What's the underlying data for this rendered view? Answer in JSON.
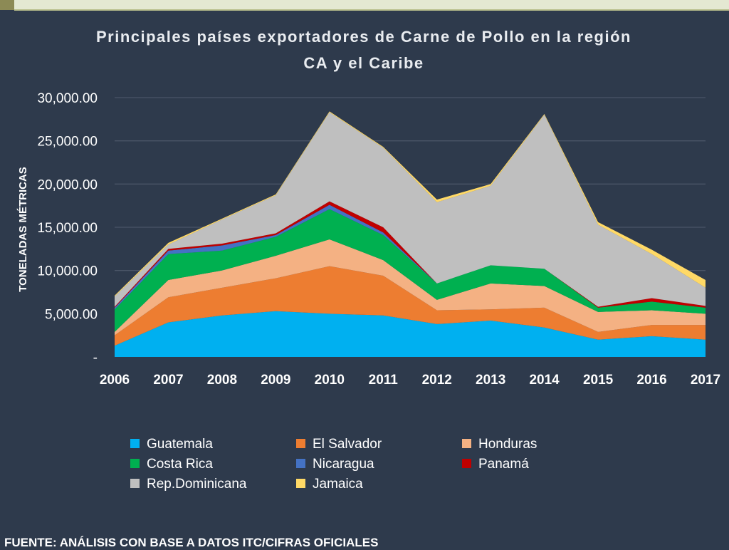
{
  "colors": {
    "background": "#2e3a4c",
    "grid": "#4a5567",
    "text": "#ffffff",
    "title": "#e9ecf0"
  },
  "source": "FUENTE: ANÁLISIS CON BASE A DATOS ITC/CIFRAS OFICIALES",
  "chart_data": {
    "type": "area",
    "stacked": true,
    "title": "Principales  países exportadores de Carne de Pollo en la región CA y el Caribe",
    "title_lines": [
      "Principales  países exportadores de Carne de Pollo en la región",
      "CA y el Caribe"
    ],
    "xlabel": "",
    "ylabel": "TONELADAS MÉTRICAS",
    "ylim": [
      0,
      30000
    ],
    "yticks": [
      0,
      5000,
      10000,
      15000,
      20000,
      25000,
      30000
    ],
    "ytick_labels": [
      "-",
      "5,000.00",
      "10,000.00",
      "15,000.00",
      "20,000.00",
      "25,000.00",
      "30,000.00"
    ],
    "grid": true,
    "legend_position": "bottom",
    "x": [
      "2006",
      "2007",
      "2008",
      "2009",
      "2010",
      "2011",
      "2012",
      "2013",
      "2014",
      "2015",
      "2016",
      "2017"
    ],
    "series": [
      {
        "name": "Guatemala",
        "color": "#00b0f0",
        "values": [
          1300,
          4000,
          4800,
          5300,
          5000,
          4800,
          3800,
          4200,
          3400,
          2000,
          2400,
          2000
        ]
      },
      {
        "name": "El Salvador",
        "color": "#ed7d31",
        "values": [
          1200,
          2900,
          3200,
          3800,
          5500,
          4600,
          1600,
          1300,
          2300,
          900,
          1300,
          1700
        ]
      },
      {
        "name": "Honduras",
        "color": "#f4b183",
        "values": [
          400,
          2000,
          2000,
          2600,
          3100,
          1800,
          1200,
          3000,
          2500,
          2300,
          1700,
          1300
        ]
      },
      {
        "name": "Costa Rica",
        "color": "#00b050",
        "values": [
          2600,
          3000,
          2300,
          2200,
          3500,
          2900,
          1900,
          2100,
          2000,
          500,
          1000,
          700
        ]
      },
      {
        "name": "Nicaragua",
        "color": "#4472c4",
        "values": [
          200,
          400,
          600,
          200,
          500,
          300,
          0,
          0,
          0,
          0,
          0,
          0
        ]
      },
      {
        "name": "Panamá",
        "color": "#c00000",
        "values": [
          100,
          200,
          200,
          200,
          400,
          600,
          0,
          0,
          0,
          100,
          400,
          200
        ]
      },
      {
        "name": "Rep.Dominicana",
        "color": "#bfbfbf",
        "values": [
          1200,
          500,
          2800,
          4400,
          10300,
          9200,
          9400,
          9200,
          17800,
          9500,
          5100,
          2100
        ]
      },
      {
        "name": "Jamaica",
        "color": "#ffd966",
        "values": [
          100,
          200,
          100,
          100,
          100,
          100,
          300,
          200,
          100,
          300,
          500,
          900
        ]
      }
    ]
  }
}
